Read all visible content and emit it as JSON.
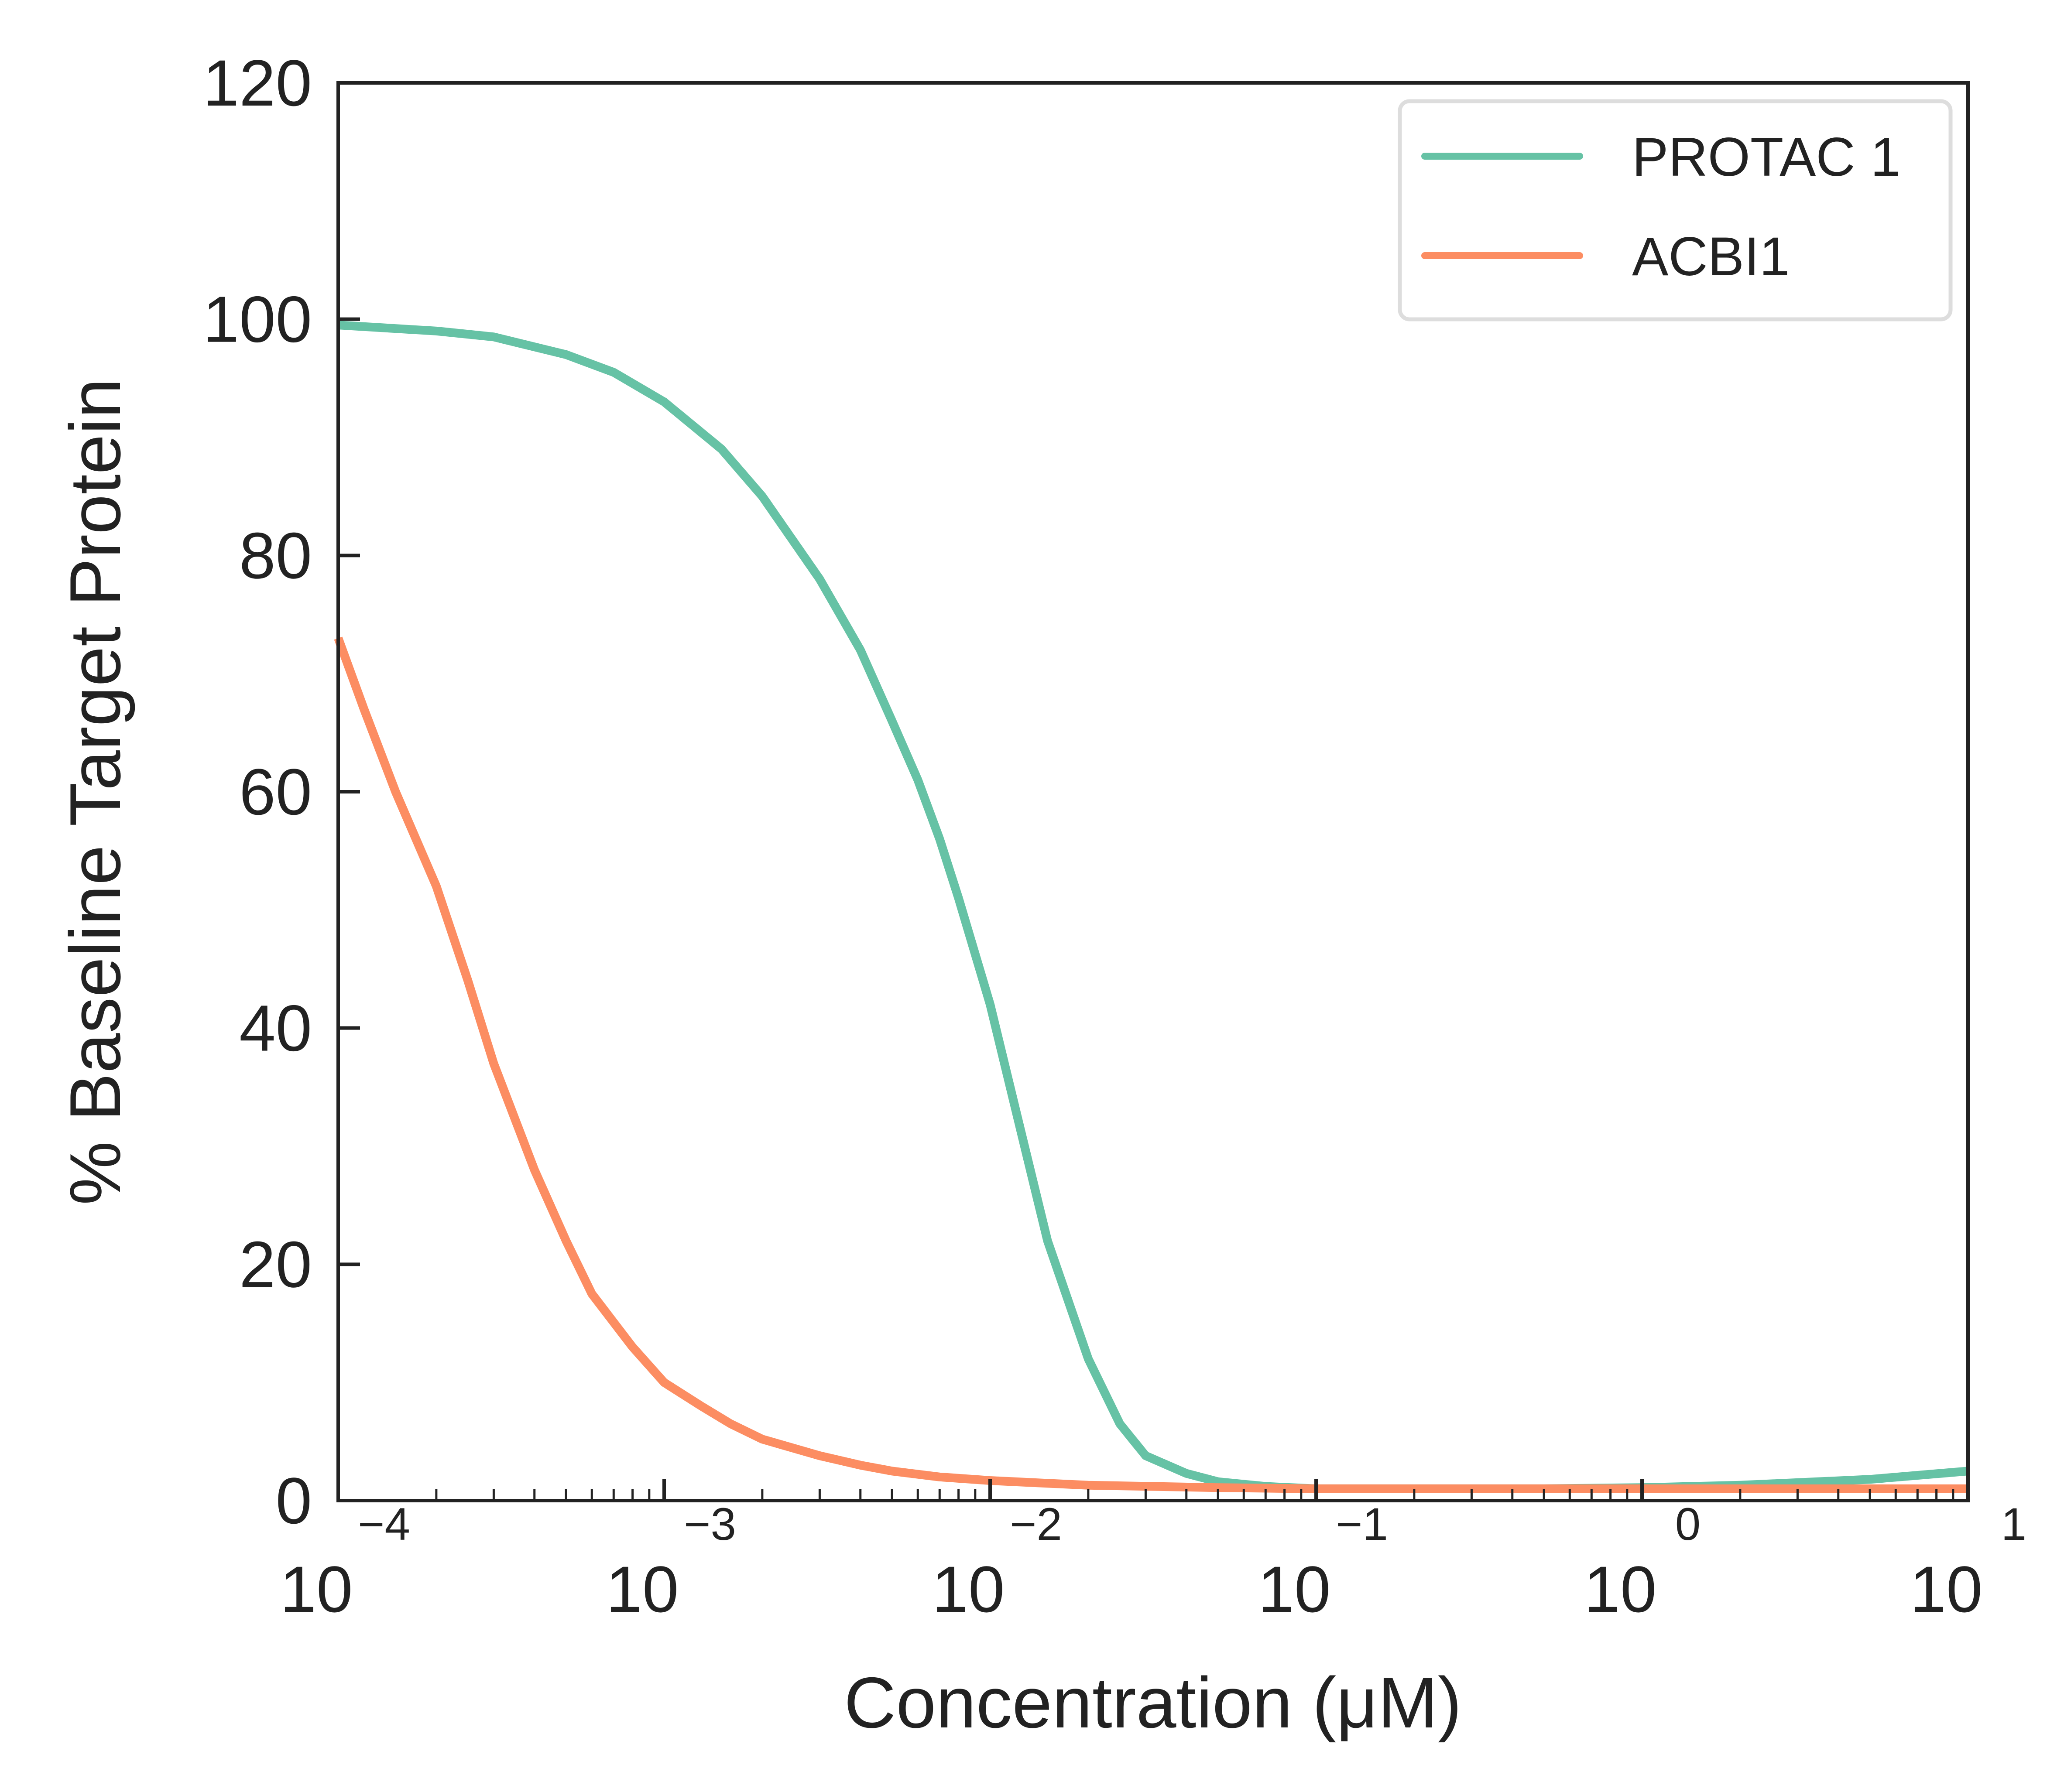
{
  "chart_data": {
    "type": "line",
    "xlabel": "Concentration (μM)",
    "ylabel": "% Baseline Target Protein",
    "xscale": "log",
    "xlim": [
      0.0001,
      10
    ],
    "ylim": [
      0,
      120
    ],
    "x_ticks": [
      {
        "base": "10",
        "exp": "−4",
        "value": 0.0001
      },
      {
        "base": "10",
        "exp": "−3",
        "value": 0.001
      },
      {
        "base": "10",
        "exp": "−2",
        "value": 0.01
      },
      {
        "base": "10",
        "exp": "−1",
        "value": 0.1
      },
      {
        "base": "10",
        "exp": "0",
        "value": 1
      },
      {
        "base": "10",
        "exp": "1",
        "value": 10
      }
    ],
    "y_ticks": [
      "0",
      "20",
      "40",
      "60",
      "80",
      "100",
      "120"
    ],
    "grid": false,
    "legend_position": "top-right",
    "series": [
      {
        "name": "PROTAC 1",
        "color": "#66c2a5",
        "x": [
          0.0001,
          0.0002,
          0.0003,
          0.0005,
          0.0007,
          0.001,
          0.0015,
          0.002,
          0.003,
          0.004,
          0.005,
          0.006,
          0.007,
          0.008,
          0.01,
          0.012,
          0.015,
          0.02,
          0.025,
          0.03,
          0.04,
          0.05,
          0.07,
          0.1,
          0.2,
          0.5,
          1,
          2,
          5,
          10
        ],
        "y": [
          99.5,
          99,
          98.5,
          97,
          95.5,
          93,
          89,
          85,
          78,
          72,
          66,
          61,
          56,
          51,
          42,
          33,
          22,
          12,
          6.5,
          3.8,
          2.3,
          1.6,
          1.2,
          1.0,
          1.0,
          1.0,
          1.1,
          1.3,
          1.8,
          2.5
        ]
      },
      {
        "name": "ACBI1",
        "color": "#fc8d62",
        "x": [
          0.0001,
          0.00012,
          0.00015,
          0.0002,
          0.00025,
          0.0003,
          0.0004,
          0.0005,
          0.0006,
          0.0008,
          0.001,
          0.0013,
          0.0016,
          0.002,
          0.003,
          0.004,
          0.005,
          0.007,
          0.01,
          0.02,
          0.05,
          0.1,
          1,
          10
        ],
        "y": [
          73,
          67,
          60,
          52,
          44,
          37,
          28,
          22,
          17.5,
          13,
          10,
          8,
          6.5,
          5.2,
          3.8,
          3.0,
          2.5,
          2.0,
          1.7,
          1.3,
          1.1,
          1.0,
          1.0,
          1.0
        ]
      }
    ]
  }
}
